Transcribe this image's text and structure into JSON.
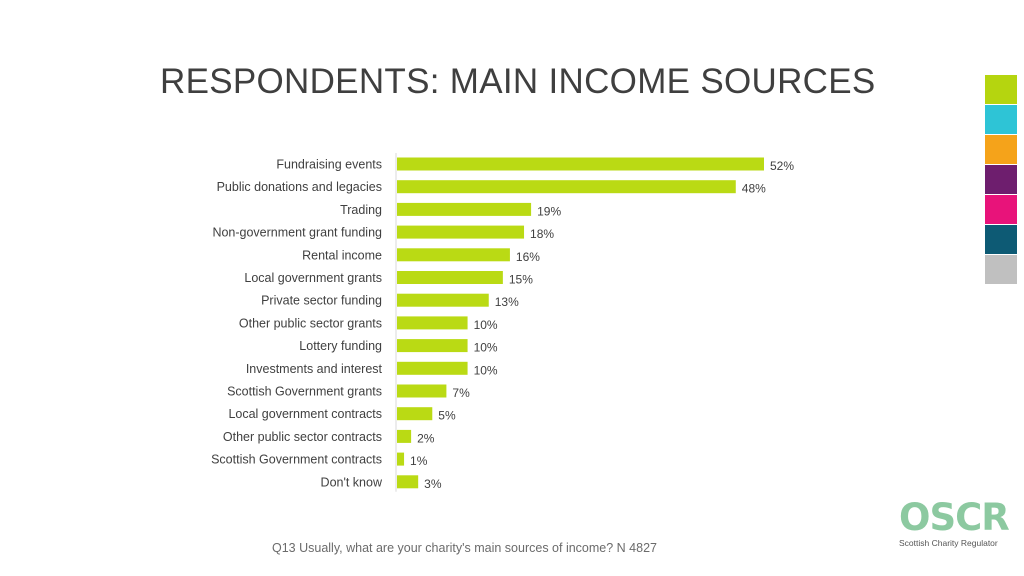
{
  "title": "RESPONDENTS: MAIN INCOME SOURCES",
  "footnote": "Q13 Usually, what are your charity's main sources of income? N 4827",
  "logo": {
    "name": "OSCR",
    "subtitle": "Scottish Charity Regulator"
  },
  "swatch_colors": [
    "#b5d50f",
    "#2ec4d6",
    "#f5a31a",
    "#6e1e6e",
    "#e8137a",
    "#0d5a74",
    "#c0c0c0"
  ],
  "chart_data": {
    "type": "bar",
    "orientation": "horizontal",
    "bar_color": "#bada14",
    "categories": [
      "Fundraising events",
      "Public donations and legacies",
      "Trading",
      "Non-government grant funding",
      "Rental income",
      "Local government grants",
      "Private sector funding",
      "Other public sector grants",
      "Lottery funding",
      "Investments and interest",
      "Scottish Government grants",
      "Local government contracts",
      "Other public sector contracts",
      "Scottish Government contracts",
      "Don't know"
    ],
    "values": [
      52,
      48,
      19,
      18,
      16,
      15,
      13,
      10,
      10,
      10,
      7,
      5,
      2,
      1,
      3
    ],
    "value_labels": [
      "52%",
      "48%",
      "19%",
      "18%",
      "16%",
      "15%",
      "13%",
      "10%",
      "10%",
      "10%",
      "7%",
      "5%",
      "2%",
      "1%",
      "3%"
    ],
    "unit": "%",
    "xlim": [
      0,
      52
    ],
    "grid": false,
    "legend": "none"
  }
}
